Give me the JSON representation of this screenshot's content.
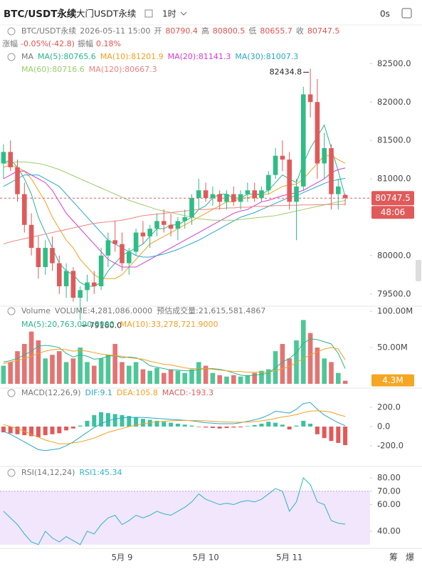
{
  "header": {
    "symbol": "BTC/USDT永续",
    "exchange": "大门USDT永续",
    "interval": "1时",
    "countdown": "0s"
  },
  "info": {
    "symbol": "BTC/USDT永续",
    "time": "2026-05-11 15:00",
    "open_label": "开",
    "open": "80790.4",
    "high_label": "高",
    "high": "80800.5",
    "low_label": "低",
    "low": "80655.7",
    "close_label": "收",
    "close": "80747.5",
    "change_label": "涨幅",
    "change": "-0.05%(-42.8)",
    "amplitude_label": "振幅",
    "amplitude": "0.18%"
  },
  "chart_data": [
    {
      "type": "candlestick",
      "indicator": "MA",
      "up_color": "#2ebd85",
      "down_color": "#e15a5a",
      "ylim": [
        79340,
        82680
      ],
      "yticks": [
        {
          "value": 82500,
          "label": "82500.0"
        },
        {
          "value": 82000,
          "label": "82000.0"
        },
        {
          "value": 81500,
          "label": "81500.0"
        },
        {
          "value": 81000,
          "label": "81000.0"
        },
        {
          "value": 80000,
          "label": "80000.0"
        },
        {
          "value": 79500,
          "label": "79500.0"
        }
      ],
      "open": [
        81200,
        81350,
        81150,
        80800,
        80400,
        80100,
        79850,
        80100,
        79900,
        79600,
        79800,
        79450,
        79550,
        79650,
        79600,
        80000,
        80200,
        80150,
        79900,
        80050,
        80300,
        80250,
        80350,
        80450,
        80400,
        80350,
        80450,
        80500,
        80750,
        80850,
        80750,
        80800,
        80700,
        80800,
        80700,
        80800,
        80850,
        80750,
        80850,
        81050,
        81300,
        81250,
        80700,
        80900,
        82100,
        82000,
        81200,
        81400,
        80800,
        80790.4
      ],
      "high": [
        81450,
        81500,
        81250,
        80950,
        80550,
        80250,
        80200,
        80250,
        80000,
        79900,
        79850,
        79600,
        79750,
        79800,
        80100,
        80300,
        80450,
        80300,
        80100,
        80350,
        80450,
        80400,
        80550,
        80600,
        80550,
        80500,
        80600,
        80800,
        81000,
        80950,
        80900,
        80850,
        80850,
        80900,
        80850,
        80950,
        80950,
        80900,
        81100,
        81400,
        81500,
        81350,
        81000,
        82200,
        82434.8,
        82300,
        81600,
        81450,
        81000,
        80800.5
      ],
      "low": [
        81000,
        81100,
        80700,
        80300,
        80000,
        79700,
        79750,
        79800,
        79500,
        79450,
        79400,
        79160,
        79400,
        79500,
        79550,
        79850,
        80050,
        79800,
        79750,
        80000,
        80150,
        80100,
        80250,
        80300,
        80250,
        80200,
        80350,
        80400,
        80600,
        80700,
        80650,
        80600,
        80600,
        80650,
        80600,
        80700,
        80700,
        80700,
        80800,
        81000,
        81100,
        80600,
        80200,
        80850,
        81800,
        81000,
        81000,
        80600,
        80600,
        80655.7
      ],
      "close": [
        81350,
        81150,
        80800,
        80400,
        80100,
        79850,
        80100,
        79900,
        79600,
        79800,
        79450,
        79550,
        79650,
        79600,
        80000,
        80200,
        80150,
        79900,
        80050,
        80300,
        80250,
        80350,
        80450,
        80400,
        80350,
        80450,
        80500,
        80750,
        80850,
        80750,
        80800,
        80700,
        80800,
        80700,
        80800,
        80850,
        80750,
        80850,
        81050,
        81300,
        81250,
        80700,
        80900,
        82100,
        82000,
        81200,
        81400,
        80800,
        80900,
        80747.5
      ],
      "annotations": [
        {
          "index": 44,
          "value": 82434.8,
          "label": "82434.8"
        },
        {
          "index": 11,
          "value": 79160,
          "label": "79160.0"
        }
      ],
      "candle_countdown": "48:06",
      "ma": [
        {
          "name": "MA(5):80765.6",
          "color": "#2bb58a",
          "values": [
            81200,
            81250,
            81150,
            81000,
            80800,
            80500,
            80300,
            80100,
            79900,
            79800,
            79750,
            79650,
            79600,
            79600,
            79650,
            79800,
            79900,
            80000,
            80050,
            80100,
            80150,
            80250,
            80350,
            80350,
            80400,
            80400,
            80450,
            80500,
            80600,
            80650,
            80750,
            80800,
            80800,
            80750,
            80750,
            80800,
            80800,
            80800,
            80850,
            80950,
            81050,
            81000,
            80950,
            81200,
            81400,
            81550,
            81700,
            81400,
            81100,
            80766
          ]
        },
        {
          "name": "MA(10):81201.9",
          "color": "#f0a020",
          "values": [
            81150,
            81180,
            81150,
            81100,
            81000,
            80850,
            80700,
            80500,
            80350,
            80200,
            80100,
            79950,
            79850,
            79750,
            79700,
            79700,
            79700,
            79750,
            79850,
            79950,
            80050,
            80150,
            80200,
            80250,
            80300,
            80350,
            80400,
            80450,
            80500,
            80550,
            80600,
            80650,
            80700,
            80700,
            80750,
            80750,
            80780,
            80800,
            80800,
            80850,
            80900,
            80920,
            80930,
            81000,
            81100,
            81200,
            81300,
            81300,
            81250,
            81202
          ]
        },
        {
          "name": "MA(20):81141.3",
          "color": "#d63ad1",
          "values": [
            81000,
            81050,
            81100,
            81100,
            81050,
            81000,
            80950,
            80850,
            80700,
            80550,
            80450,
            80350,
            80250,
            80150,
            80050,
            79950,
            79900,
            79850,
            79850,
            79850,
            79900,
            79950,
            80000,
            80050,
            80100,
            80150,
            80200,
            80250,
            80300,
            80350,
            80400,
            80450,
            80500,
            80550,
            80580,
            80600,
            80650,
            80700,
            80720,
            80750,
            80780,
            80800,
            80820,
            80850,
            80900,
            80950,
            81000,
            81080,
            81120,
            81141
          ]
        },
        {
          "name": "MA(30):81007.3",
          "color": "#2aa7c9",
          "values": [
            80900,
            80950,
            81000,
            81050,
            81050,
            81050,
            81000,
            80950,
            80900,
            80800,
            80700,
            80600,
            80500,
            80400,
            80300,
            80200,
            80150,
            80100,
            80050,
            80000,
            79980,
            79980,
            80000,
            80020,
            80050,
            80080,
            80120,
            80160,
            80200,
            80250,
            80300,
            80350,
            80400,
            80450,
            80500,
            80530,
            80560,
            80600,
            80640,
            80680,
            80720,
            80760,
            80780,
            80820,
            80860,
            80900,
            80940,
            80970,
            80990,
            81007
          ]
        },
        {
          "name": "MA(60):80716.6",
          "color": "#9acd6a",
          "values": [
            81200,
            81210,
            81220,
            81220,
            81210,
            81200,
            81180,
            81150,
            81120,
            81080,
            81040,
            81000,
            80960,
            80920,
            80880,
            80840,
            80800,
            80760,
            80720,
            80690,
            80660,
            80630,
            80600,
            80580,
            80560,
            80540,
            80520,
            80500,
            80480,
            80470,
            80460,
            80460,
            80460,
            80460,
            80470,
            80480,
            80490,
            80500,
            80510,
            80520,
            80540,
            80560,
            80580,
            80600,
            80620,
            80640,
            80660,
            80680,
            80700,
            80717
          ]
        },
        {
          "name": "MA(120):80667.3",
          "color": "#f08080",
          "values": [
            80150,
            80180,
            80200,
            80220,
            80240,
            80260,
            80280,
            80300,
            80320,
            80340,
            80360,
            80380,
            80400,
            80420,
            80430,
            80440,
            80450,
            80460,
            80480,
            80500,
            80520,
            80530,
            80540,
            80550,
            80560,
            80570,
            80580,
            80590,
            80600,
            80600,
            80610,
            80610,
            80620,
            80620,
            80630,
            80630,
            80640,
            80640,
            80645,
            80650,
            80650,
            80655,
            80655,
            80660,
            80660,
            80662,
            80664,
            80665,
            80666,
            80667
          ]
        }
      ]
    },
    {
      "type": "volume",
      "indicator": "Volume",
      "readouts": [
        "VOLUME:4,281,086.0000",
        "预估成交量:21,615,581.4867"
      ],
      "ylim": [
        -1,
        107
      ],
      "yticks": [
        {
          "value": 100,
          "label": "100.00M"
        },
        {
          "value": 50,
          "label": "50.00M"
        }
      ],
      "values": [
        25,
        30,
        45,
        55,
        72,
        60,
        35,
        40,
        45,
        30,
        35,
        50,
        30,
        25,
        35,
        40,
        55,
        30,
        25,
        30,
        20,
        18,
        22,
        15,
        20,
        18,
        15,
        20,
        30,
        25,
        15,
        12,
        10,
        12,
        10,
        12,
        15,
        18,
        20,
        45,
        55,
        35,
        60,
        88,
        70,
        50,
        35,
        30,
        15,
        4.28
      ],
      "last_label": "4.3M",
      "last_color": "#f5a623",
      "series": [
        {
          "name": "MA(5):20,763,090.8000",
          "color": "#2bb58a",
          "values": [
            30,
            32,
            35,
            40,
            45,
            52,
            53,
            52,
            50,
            42,
            37,
            40,
            38,
            34,
            35,
            38,
            39,
            36,
            37,
            36,
            32,
            25,
            23,
            21,
            19,
            19,
            18,
            18,
            20,
            21,
            21,
            20,
            18,
            15,
            12,
            11,
            12,
            13,
            15,
            22,
            30,
            35,
            43,
            56,
            62,
            61,
            58,
            55,
            42,
            21
          ]
        },
        {
          "name": "MA(10):33,278,721.9000",
          "color": "#f0a020",
          "values": [
            28,
            30,
            32,
            35,
            38,
            42,
            45,
            47,
            48,
            47,
            45,
            46,
            45,
            43,
            41,
            40,
            39,
            38,
            36,
            35,
            34,
            31,
            29,
            27,
            26,
            24,
            22,
            21,
            21,
            21,
            20,
            19,
            18,
            17,
            17,
            16,
            16,
            16,
            16,
            18,
            21,
            24,
            29,
            35,
            40,
            44,
            48,
            50,
            48,
            33
          ]
        }
      ]
    },
    {
      "type": "macd",
      "indicator": "MACD(12,26,9)",
      "up_color": "#3cc1a0",
      "down_color": "#e15a5a",
      "ylim": [
        -393,
        378
      ],
      "yticks": [
        {
          "value": 200,
          "label": "200.0"
        },
        {
          "value": 0,
          "label": "0.0"
        },
        {
          "value": -200,
          "label": "-200.0"
        }
      ],
      "values": [
        -60,
        -70,
        -80,
        -90,
        -100,
        -110,
        -90,
        -80,
        -70,
        -40,
        -20,
        10,
        60,
        120,
        150,
        140,
        130,
        120,
        110,
        100,
        80,
        70,
        60,
        50,
        40,
        30,
        20,
        10,
        -5,
        -10,
        -15,
        -20,
        -15,
        -10,
        -8,
        5,
        15,
        30,
        50,
        40,
        20,
        -30,
        10,
        60,
        30,
        -80,
        -120,
        -150,
        -170,
        -193.3
      ],
      "value_name": "MACD:-193.3",
      "value_color": "#e15a5a",
      "series": [
        {
          "name": "DIF:9.1",
          "color": "#2aa7c9",
          "values": [
            -50,
            -80,
            -120,
            -160,
            -200,
            -240,
            -250,
            -240,
            -230,
            -200,
            -160,
            -110,
            -60,
            -10,
            30,
            60,
            80,
            90,
            95,
            95,
            95,
            90,
            85,
            80,
            75,
            70,
            65,
            60,
            50,
            40,
            35,
            30,
            30,
            30,
            40,
            55,
            70,
            90,
            120,
            160,
            150,
            140,
            180,
            240,
            250,
            180,
            120,
            80,
            40,
            9.1
          ]
        },
        {
          "name": "DEA:105.8",
          "color": "#f0a020",
          "values": [
            20,
            0,
            -20,
            -50,
            -80,
            -110,
            -140,
            -160,
            -180,
            -180,
            -170,
            -160,
            -140,
            -120,
            -90,
            -60,
            -40,
            -20,
            0,
            15,
            30,
            40,
            50,
            55,
            60,
            62,
            63,
            63,
            62,
            60,
            55,
            50,
            47,
            45,
            45,
            47,
            52,
            60,
            70,
            85,
            100,
            110,
            125,
            145,
            160,
            165,
            160,
            150,
            125,
            105.8
          ]
        }
      ]
    },
    {
      "type": "rsi",
      "indicator": "RSI(14,12,24)",
      "band": [
        30,
        70
      ],
      "band_color": "#f1e6fb",
      "ylim": [
        27.2,
        85.9
      ],
      "yticks": [
        {
          "value": 80,
          "label": "80.00"
        },
        {
          "value": 70,
          "label": "70.00"
        },
        {
          "value": 60,
          "label": "60.00"
        },
        {
          "value": 40,
          "label": "40.00"
        }
      ],
      "categories": [
        null,
        null,
        null,
        null,
        null,
        null,
        null,
        null,
        null,
        null,
        null,
        null,
        null,
        null,
        null,
        null,
        null,
        "5月 9",
        null,
        null,
        null,
        null,
        null,
        null,
        null,
        null,
        null,
        null,
        null,
        "5月 10",
        null,
        null,
        null,
        null,
        null,
        null,
        null,
        null,
        null,
        null,
        null,
        "5月 11",
        null,
        null,
        null,
        null,
        null,
        null,
        null,
        null
      ],
      "series": [
        {
          "name": "RSI1:45.34",
          "color": "#2bb5c9",
          "values": [
            55,
            50,
            45,
            38,
            32,
            30,
            40,
            35,
            32,
            36,
            33,
            30,
            40,
            38,
            45,
            50,
            52,
            45,
            48,
            52,
            50,
            52,
            55,
            53,
            52,
            55,
            58,
            62,
            68,
            64,
            62,
            60,
            61,
            60,
            62,
            63,
            62,
            64,
            68,
            72,
            70,
            55,
            62,
            80,
            75,
            62,
            60,
            48,
            46,
            45.34
          ]
        }
      ]
    }
  ],
  "footer": {
    "buttons": [
      "筹",
      "爆"
    ]
  }
}
